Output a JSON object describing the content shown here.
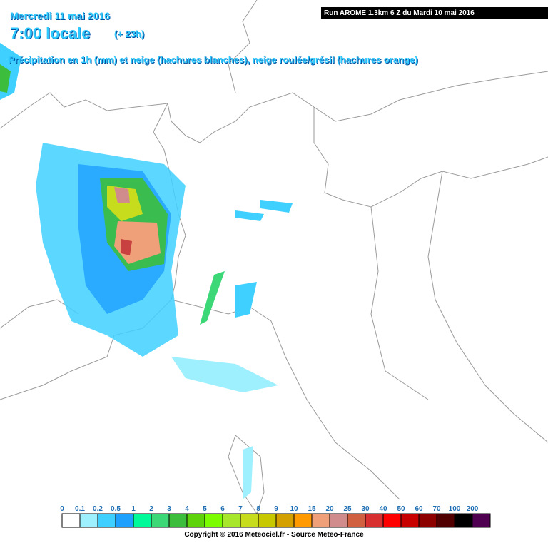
{
  "header": {
    "date": "Mercredi 11 mai 2016",
    "time": "7:00 locale",
    "lead_time": "(+ 23h)",
    "description": "Précipitation en 1h (mm) et neige (hachures blanches), neige roulée/grésil (hachures orange)",
    "run": "Run AROME 1.3km 6 Z du Mardi 10 mai 2016"
  },
  "legend": {
    "items": [
      {
        "label": "0",
        "color": "#ffffff"
      },
      {
        "label": "0.1",
        "color": "#9ff0ff"
      },
      {
        "label": "0.2",
        "color": "#3fd0ff"
      },
      {
        "label": "0.5",
        "color": "#1ea0ff"
      },
      {
        "label": "1",
        "color": "#00fa9a"
      },
      {
        "label": "2",
        "color": "#3cd878"
      },
      {
        "label": "3",
        "color": "#3cbe3c"
      },
      {
        "label": "4",
        "color": "#5ed20a"
      },
      {
        "label": "5",
        "color": "#7cfc00"
      },
      {
        "label": "6",
        "color": "#a8e62c"
      },
      {
        "label": "7",
        "color": "#c8dc1e"
      },
      {
        "label": "8",
        "color": "#c8c800"
      },
      {
        "label": "9",
        "color": "#d4a000"
      },
      {
        "label": "10",
        "color": "#ff9a00"
      },
      {
        "label": "15",
        "color": "#f0a078"
      },
      {
        "label": "20",
        "color": "#d08c8c"
      },
      {
        "label": "25",
        "color": "#d06040"
      },
      {
        "label": "30",
        "color": "#d83030"
      },
      {
        "label": "40",
        "color": "#ff0000"
      },
      {
        "label": "50",
        "color": "#c80000"
      },
      {
        "label": "60",
        "color": "#8c0000"
      },
      {
        "label": "70",
        "color": "#500000"
      },
      {
        "label": "100",
        "color": "#000000"
      },
      {
        "label": "200",
        "color": "#500050"
      }
    ]
  },
  "footer": {
    "copyright": "Copyright © 2016 Meteociel.fr - Source Meteo-France"
  }
}
